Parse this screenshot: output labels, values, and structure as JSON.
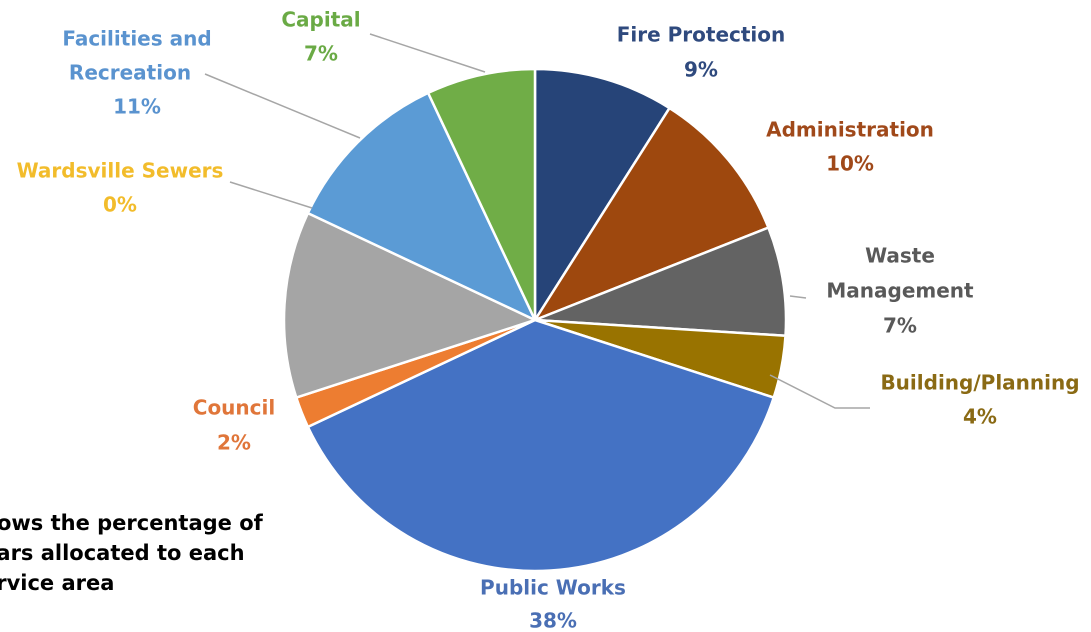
{
  "chart_data": {
    "type": "pie",
    "slices": [
      {
        "name": "Fire Protection",
        "pct_label": "9%",
        "value": 9,
        "color": "#264478"
      },
      {
        "name": "Administration",
        "pct_label": "10%",
        "value": 10,
        "color": "#9E480E"
      },
      {
        "name": "Waste Management",
        "pct_label": "7%",
        "value": 7,
        "color": "#636363"
      },
      {
        "name": "Building/Planning",
        "pct_label": "4%",
        "value": 4,
        "color": "#997300"
      },
      {
        "name": "Public Works",
        "pct_label": "38%",
        "value": 38,
        "color": "#4472C4"
      },
      {
        "name": "Council",
        "pct_label": "2%",
        "value": 2,
        "color": "#ED7D31"
      },
      {
        "name": "",
        "pct_label": "",
        "value": 12,
        "color": "#A5A5A5"
      },
      {
        "name": "Wardsville Sewers",
        "pct_label": "0%",
        "value": 0,
        "color": "#FFC000"
      },
      {
        "name": "Facilities and Recreation",
        "pct_label": "11%",
        "value": 11,
        "color": "#5B9BD5"
      },
      {
        "name": "Capital",
        "pct_label": "7%",
        "value": 7,
        "color": "#70AD47"
      }
    ],
    "label_colors": {
      "Fire Protection": "#2F4A7E",
      "Administration": "#A0491A",
      "Waste Management": "#595959",
      "Building/Planning": "#8A6A14",
      "Public Works": "#4A6FB4",
      "Council": "#E0763A",
      "Wardsville Sewers": "#F2BC2B",
      "Facilities and Recreation": "#5A93CF",
      "Capital": "#6AAA45"
    }
  },
  "caption": "hows the percentage of\nllars allocated to each\nervice area"
}
